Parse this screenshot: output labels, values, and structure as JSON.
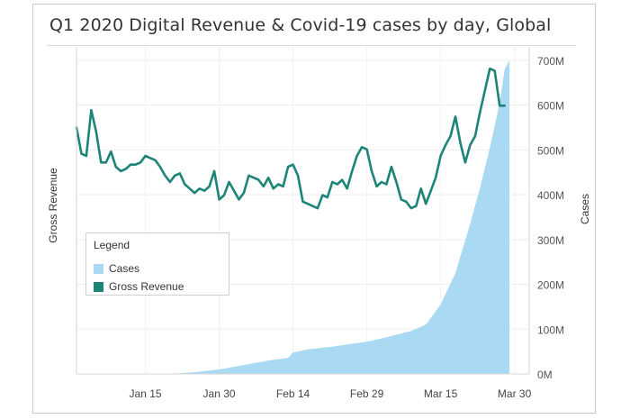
{
  "chart_data": {
    "type": "line",
    "title": "Q1 2020 Digital Revenue & Covid-19 cases by day, Global",
    "ylabel_left": "Gross Revenue",
    "ylabel_right": "Cases",
    "xlim": [
      "2020-01-01",
      "2020-04-02"
    ],
    "x_ticks": [
      {
        "label": "Jan 15",
        "date": "2020-01-15"
      },
      {
        "label": "Jan 30",
        "date": "2020-01-30"
      },
      {
        "label": "Feb 14",
        "date": "2020-02-14"
      },
      {
        "label": "Feb 29",
        "date": "2020-02-29"
      },
      {
        "label": "Mar 15",
        "date": "2020-03-15"
      },
      {
        "label": "Mar 30",
        "date": "2020-03-30"
      }
    ],
    "right_axis": {
      "ylim": [
        0,
        730000000
      ],
      "ticks": [
        {
          "label": "0M",
          "value": 0
        },
        {
          "label": "100M",
          "value": 100000000
        },
        {
          "label": "200M",
          "value": 200000000
        },
        {
          "label": "300M",
          "value": 300000000
        },
        {
          "label": "400M",
          "value": 400000000
        },
        {
          "label": "500M",
          "value": 500000000
        },
        {
          "label": "600M",
          "value": 600000000
        },
        {
          "label": "700M",
          "value": 700000000
        }
      ]
    },
    "grid": true,
    "legend": {
      "title": "Legend",
      "position": "middle-left",
      "items": [
        {
          "name": "Cases",
          "color": "#aad9f4"
        },
        {
          "name": "Gross Revenue",
          "color": "#1d8478"
        }
      ]
    },
    "series": [
      {
        "name": "Cases",
        "type": "area",
        "axis": "right",
        "color": "#aad9f4",
        "points": [
          [
            "2020-01-01",
            0
          ],
          [
            "2020-01-20",
            0
          ],
          [
            "2020-01-25",
            4000000
          ],
          [
            "2020-01-30",
            10000000
          ],
          [
            "2020-02-04",
            20000000
          ],
          [
            "2020-02-09",
            30000000
          ],
          [
            "2020-02-13",
            36000000
          ],
          [
            "2020-02-14",
            48000000
          ],
          [
            "2020-02-17",
            55000000
          ],
          [
            "2020-02-22",
            61000000
          ],
          [
            "2020-02-29",
            72000000
          ],
          [
            "2020-03-04",
            82000000
          ],
          [
            "2020-03-09",
            96000000
          ],
          [
            "2020-03-12",
            110000000
          ],
          [
            "2020-03-15",
            155000000
          ],
          [
            "2020-03-18",
            225000000
          ],
          [
            "2020-03-21",
            335000000
          ],
          [
            "2020-03-23",
            415000000
          ],
          [
            "2020-03-25",
            505000000
          ],
          [
            "2020-03-27",
            605000000
          ],
          [
            "2020-03-28",
            680000000
          ],
          [
            "2020-03-29",
            700000000
          ]
        ]
      },
      {
        "name": "Gross Revenue",
        "type": "line",
        "axis": "left",
        "color": "#1d8478",
        "points": [
          [
            "2020-01-01",
            0.565
          ],
          [
            "2020-01-02",
            0.505
          ],
          [
            "2020-01-03",
            0.5
          ],
          [
            "2020-01-04",
            0.605
          ],
          [
            "2020-01-05",
            0.555
          ],
          [
            "2020-01-06",
            0.485
          ],
          [
            "2020-01-07",
            0.485
          ],
          [
            "2020-01-08",
            0.51
          ],
          [
            "2020-01-09",
            0.475
          ],
          [
            "2020-01-10",
            0.465
          ],
          [
            "2020-01-11",
            0.47
          ],
          [
            "2020-01-12",
            0.48
          ],
          [
            "2020-01-13",
            0.48
          ],
          [
            "2020-01-14",
            0.485
          ],
          [
            "2020-01-15",
            0.5
          ],
          [
            "2020-01-16",
            0.495
          ],
          [
            "2020-01-17",
            0.49
          ],
          [
            "2020-01-18",
            0.475
          ],
          [
            "2020-01-19",
            0.455
          ],
          [
            "2020-01-20",
            0.44
          ],
          [
            "2020-01-21",
            0.455
          ],
          [
            "2020-01-22",
            0.46
          ],
          [
            "2020-01-23",
            0.435
          ],
          [
            "2020-01-24",
            0.425
          ],
          [
            "2020-01-25",
            0.415
          ],
          [
            "2020-01-26",
            0.425
          ],
          [
            "2020-01-27",
            0.42
          ],
          [
            "2020-01-28",
            0.43
          ],
          [
            "2020-01-29",
            0.465
          ],
          [
            "2020-01-30",
            0.4
          ],
          [
            "2020-01-31",
            0.41
          ],
          [
            "2020-02-01",
            0.44
          ],
          [
            "2020-02-02",
            0.42
          ],
          [
            "2020-02-03",
            0.4
          ],
          [
            "2020-02-04",
            0.415
          ],
          [
            "2020-02-05",
            0.455
          ],
          [
            "2020-02-06",
            0.45
          ],
          [
            "2020-02-07",
            0.445
          ],
          [
            "2020-02-08",
            0.43
          ],
          [
            "2020-02-09",
            0.45
          ],
          [
            "2020-02-10",
            0.425
          ],
          [
            "2020-02-11",
            0.435
          ],
          [
            "2020-02-12",
            0.43
          ],
          [
            "2020-02-13",
            0.475
          ],
          [
            "2020-02-14",
            0.48
          ],
          [
            "2020-02-15",
            0.455
          ],
          [
            "2020-02-16",
            0.395
          ],
          [
            "2020-02-17",
            0.39
          ],
          [
            "2020-02-18",
            0.385
          ],
          [
            "2020-02-19",
            0.38
          ],
          [
            "2020-02-20",
            0.41
          ],
          [
            "2020-02-21",
            0.405
          ],
          [
            "2020-02-22",
            0.44
          ],
          [
            "2020-02-23",
            0.435
          ],
          [
            "2020-02-24",
            0.445
          ],
          [
            "2020-02-25",
            0.425
          ],
          [
            "2020-02-26",
            0.465
          ],
          [
            "2020-02-27",
            0.5
          ],
          [
            "2020-02-28",
            0.52
          ],
          [
            "2020-02-29",
            0.515
          ],
          [
            "2020-03-01",
            0.465
          ],
          [
            "2020-03-02",
            0.43
          ],
          [
            "2020-03-03",
            0.44
          ],
          [
            "2020-03-04",
            0.435
          ],
          [
            "2020-03-05",
            0.475
          ],
          [
            "2020-03-06",
            0.44
          ],
          [
            "2020-03-07",
            0.4
          ],
          [
            "2020-03-08",
            0.395
          ],
          [
            "2020-03-09",
            0.38
          ],
          [
            "2020-03-10",
            0.385
          ],
          [
            "2020-03-11",
            0.425
          ],
          [
            "2020-03-12",
            0.39
          ],
          [
            "2020-03-13",
            0.42
          ],
          [
            "2020-03-14",
            0.45
          ],
          [
            "2020-03-15",
            0.5
          ],
          [
            "2020-03-16",
            0.525
          ],
          [
            "2020-03-17",
            0.545
          ],
          [
            "2020-03-18",
            0.59
          ],
          [
            "2020-03-19",
            0.53
          ],
          [
            "2020-03-20",
            0.485
          ],
          [
            "2020-03-21",
            0.525
          ],
          [
            "2020-03-22",
            0.545
          ],
          [
            "2020-03-23",
            0.6
          ],
          [
            "2020-03-24",
            0.65
          ],
          [
            "2020-03-25",
            0.7
          ],
          [
            "2020-03-26",
            0.695
          ],
          [
            "2020-03-27",
            0.615
          ],
          [
            "2020-03-28",
            0.615
          ]
        ]
      }
    ]
  }
}
